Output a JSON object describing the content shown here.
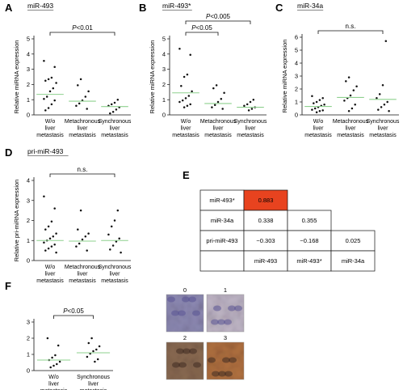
{
  "chart_data": [
    {
      "panel": "A",
      "type": "scatter",
      "title": "miR-493",
      "ylabel": "Relative miRNA  expression",
      "ylim": [
        0,
        5
      ],
      "yticks": [
        0,
        1,
        2,
        3,
        4,
        5
      ],
      "categories": [
        "W/o liver metastasis",
        "Metachronous liver metastasis",
        "Synchronous liver metastasis"
      ],
      "cat_lines": [
        [
          "W/o",
          "liver",
          "metastasis"
        ],
        [
          "Metachronous",
          "liver",
          "metastasis"
        ],
        [
          "Synchronous",
          "liver",
          "metastasis"
        ]
      ],
      "points": [
        [
          3.55,
          3.15,
          2.45,
          2.35,
          2.25,
          2.1,
          1.75,
          1.55,
          1.2,
          1.05,
          0.95,
          0.7,
          0.45,
          0.3
        ],
        [
          2.35,
          1.95,
          1.55,
          1.2,
          0.95,
          0.75,
          0.6,
          0.4
        ],
        [
          1.0,
          0.8,
          0.7,
          0.6,
          0.5,
          0.35,
          0.2,
          0.1
        ]
      ],
      "medians": [
        1.35,
        0.9,
        0.55
      ],
      "comparisons": [
        {
          "from": 0,
          "to": 2,
          "label": "P<0.01",
          "level": 0
        }
      ]
    },
    {
      "panel": "B",
      "type": "scatter",
      "title": "miR-493*",
      "ylabel": "Relative miRNA  expression",
      "ylim": [
        0,
        5
      ],
      "yticks": [
        0,
        1,
        2,
        3,
        4,
        5
      ],
      "categories": [
        "W/o liver metastasis",
        "Metachronous liver metastasis",
        "Synchronous liver metastasis"
      ],
      "cat_lines": [
        [
          "W/o",
          "liver",
          "metastasis"
        ],
        [
          "Metachronous",
          "liver",
          "metastasis"
        ],
        [
          "Synchronous",
          "liver",
          "metastasis"
        ]
      ],
      "points": [
        [
          4.35,
          3.95,
          2.65,
          2.5,
          1.9,
          1.55,
          1.25,
          1.1,
          0.95,
          0.85,
          0.7,
          0.6,
          0.5
        ],
        [
          1.95,
          1.75,
          1.45,
          1.05,
          0.85,
          0.65,
          0.5,
          0.4
        ],
        [
          1.0,
          0.85,
          0.7,
          0.6,
          0.5,
          0.4,
          0.3
        ]
      ],
      "medians": [
        1.45,
        0.75,
        0.5
      ],
      "comparisons": [
        {
          "from": 0,
          "to": 1,
          "label": "P<0.05",
          "level": 0
        },
        {
          "from": 0,
          "to": 2,
          "label": "P<0.005",
          "level": 1
        }
      ]
    },
    {
      "panel": "C",
      "type": "scatter",
      "title": "miR-34a",
      "ylabel": "Relative miRNA  expression",
      "ylim": [
        0,
        6
      ],
      "yticks": [
        0,
        1,
        2,
        3,
        4,
        5,
        6
      ],
      "categories": [
        "W/o liver metastasis",
        "Metachronous liver metastasis",
        "Synchronous liver metastasis"
      ],
      "cat_lines": [
        [
          "W/o",
          "liver",
          "metastasis"
        ],
        [
          "Metachronous",
          "liver",
          "metastasis"
        ],
        [
          "Synchronous",
          "liver",
          "metastasis"
        ]
      ],
      "points": [
        [
          1.45,
          1.3,
          1.15,
          1.0,
          0.9,
          0.8,
          0.7,
          0.6,
          0.5,
          0.4,
          0.35,
          0.3,
          0.2
        ],
        [
          2.9,
          2.6,
          2.2,
          1.9,
          1.5,
          1.3,
          1.1,
          0.8,
          0.5,
          0.3
        ],
        [
          5.7,
          2.3,
          1.6,
          1.3,
          1.0,
          0.8,
          0.6,
          0.4,
          0.3
        ]
      ],
      "medians": [
        0.65,
        1.35,
        1.2
      ],
      "comparisons": [
        {
          "from": 0,
          "to": 2,
          "label": "n.s.",
          "level": 0
        }
      ]
    },
    {
      "panel": "D",
      "type": "scatter",
      "title": "pri-miR-493",
      "ylabel": "Relative pri-miRNA  expression",
      "ylim": [
        0,
        4
      ],
      "yticks": [
        0,
        1,
        2,
        3,
        4
      ],
      "categories": [
        "W/o liver metastasis",
        "Metachronous liver metastasis",
        "Synchronous liver metastasis"
      ],
      "cat_lines": [
        [
          "W/o",
          "liver",
          "metastasis"
        ],
        [
          "Metachronous",
          "liver",
          "metastasis"
        ],
        [
          "Synchronous",
          "liver",
          "metastasis"
        ]
      ],
      "points": [
        [
          3.2,
          2.6,
          1.95,
          1.7,
          1.55,
          1.35,
          1.2,
          1.1,
          1.0,
          0.9,
          0.8,
          0.7,
          0.6,
          0.5,
          0.4
        ],
        [
          2.5,
          1.55,
          1.35,
          1.2,
          1.05,
          0.85,
          0.7,
          0.5
        ],
        [
          2.5,
          2.0,
          1.7,
          1.3,
          1.1,
          0.95,
          0.75,
          0.55,
          0.4
        ]
      ],
      "medians": [
        1.0,
        0.97,
        1.0
      ],
      "comparisons": [
        {
          "from": 0,
          "to": 2,
          "label": "n.s.",
          "level": 0
        }
      ]
    },
    {
      "panel": "F",
      "type": "scatter",
      "title": "",
      "ylabel": "",
      "ylim": [
        0,
        3
      ],
      "yticks": [
        0,
        1,
        2,
        3
      ],
      "categories": [
        "W/o liver metastasis",
        "Synchronous liver metastasis"
      ],
      "cat_lines": [
        [
          "W/o",
          "liver",
          "metastasis"
        ],
        [
          "Synchronous",
          "liver",
          "metastasis"
        ]
      ],
      "points": [
        [
          2.0,
          1.55,
          0.95,
          0.8,
          0.65,
          0.55,
          0.4,
          0.3,
          0.2
        ],
        [
          2.0,
          1.7,
          1.5,
          1.3,
          1.2,
          1.05,
          0.85,
          0.7,
          0.55
        ]
      ],
      "medians": [
        0.65,
        1.1
      ],
      "comparisons": [
        {
          "from": 0,
          "to": 1,
          "label": "P<0.05",
          "level": 0
        }
      ]
    },
    {
      "panel": "E",
      "type": "table",
      "rows": [
        {
          "label": "miR-493*",
          "values": [
            "0.883"
          ]
        },
        {
          "label": "miR-34a",
          "values": [
            "0.338",
            "0.355"
          ]
        },
        {
          "label": "pri-miR-493",
          "values": [
            "−0.303",
            "−0.168",
            "0.025"
          ]
        }
      ],
      "columns": [
        "miR-493",
        "miR-493*",
        "miR-34a"
      ],
      "highlight_color": "#e8431f"
    }
  ],
  "panel_labels": [
    "A",
    "B",
    "C",
    "D",
    "E",
    "F"
  ],
  "ihc": {
    "labels": [
      "0",
      "1",
      "2",
      "3"
    ],
    "tile_colors": [
      "#8e8ab4",
      "#bfb5c6",
      "#8a6a52",
      "#b07040"
    ]
  },
  "colors": {
    "median_line": "#8ed08e",
    "dot": "#111111",
    "highlight": "#e8431f"
  }
}
